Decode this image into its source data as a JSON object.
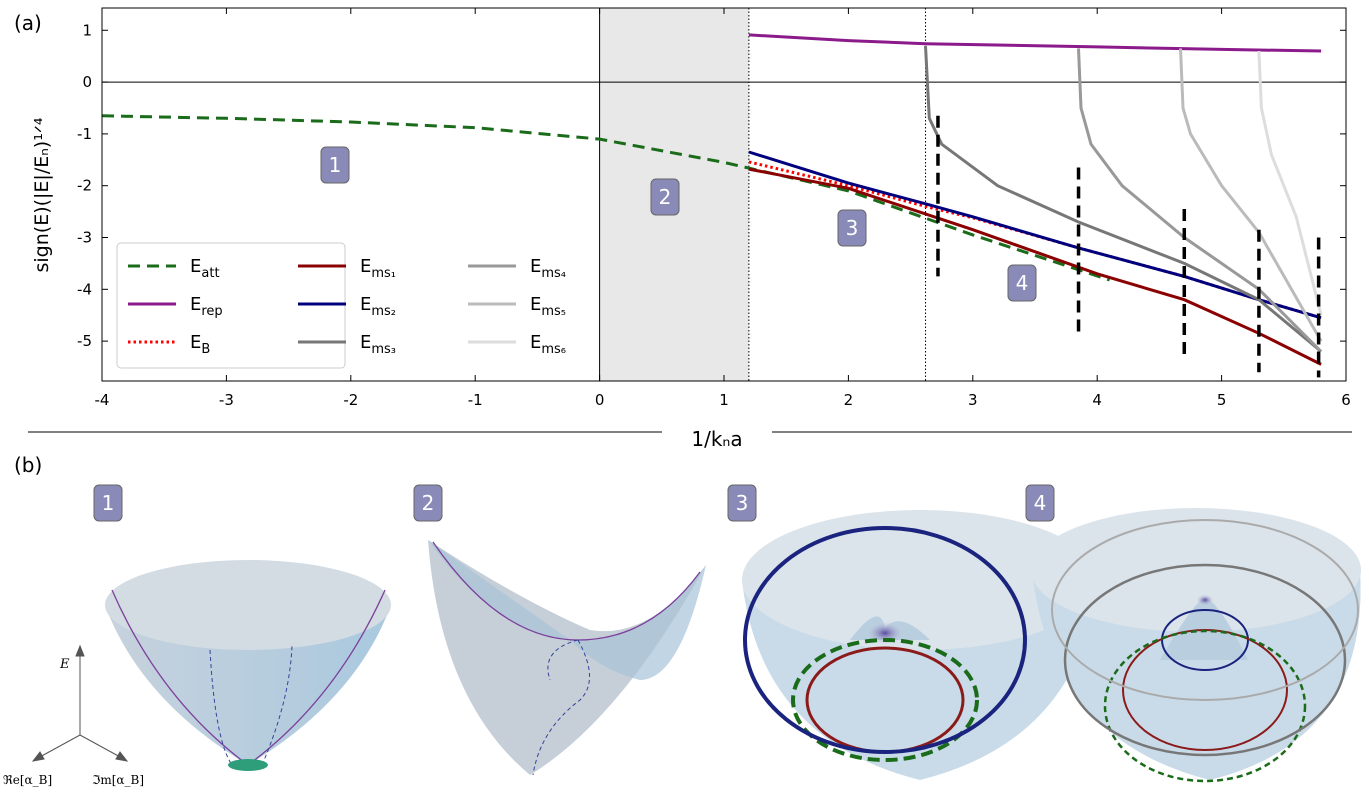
{
  "chart_data": {
    "type": "line",
    "xlabel": "1/kₙa",
    "ylabel": "sign(E)(|E|/Eₙ)¹ᐟ⁴",
    "xlim": [
      -4,
      6
    ],
    "ylim": [
      -5.77,
      1.43
    ],
    "xticks": [
      -4,
      -3,
      -2,
      -1,
      0,
      1,
      2,
      3,
      4,
      5,
      6
    ],
    "yticks": [
      -5,
      -4,
      -3,
      -2,
      -1,
      0,
      1
    ],
    "shaded_region": [
      0,
      1.2
    ],
    "dotted_lines": [
      1.2,
      2.62
    ],
    "dashed_bars": [
      {
        "x": 2.72,
        "y0": -0.65,
        "y1": -3.75
      },
      {
        "x": 3.85,
        "y0": -1.65,
        "y1": -4.85
      },
      {
        "x": 4.7,
        "y0": -2.45,
        "y1": -5.3
      },
      {
        "x": 5.3,
        "y0": -2.85,
        "y1": -5.6
      },
      {
        "x": 5.78,
        "y0": -3.0,
        "y1": -5.7
      }
    ],
    "annotations": [
      "1",
      "2",
      "3",
      "4"
    ],
    "legend": "lower left",
    "series": [
      {
        "name": "E",
        "sub": "att",
        "color": "#1a6b1a",
        "dash": "dashed",
        "x": [
          -4,
          -3,
          -2,
          -1,
          0,
          1,
          1.2,
          2,
          3,
          4.1
        ],
        "values": [
          -0.65,
          -0.7,
          -0.77,
          -0.88,
          -1.1,
          -1.55,
          -1.66,
          -2.1,
          -2.95,
          -3.82
        ]
      },
      {
        "name": "E",
        "sub": "rep",
        "color": "#8b1a8b",
        "dash": "solid",
        "x": [
          1.2,
          2,
          2.62,
          4,
          5,
          5.8
        ],
        "values": [
          0.91,
          0.8,
          0.74,
          0.68,
          0.63,
          0.6
        ]
      },
      {
        "name": "E",
        "sub": "B",
        "color": "#ff0000",
        "dash": "dotted",
        "x": [
          1.2,
          2,
          2.62,
          3,
          3.85,
          4.7,
          5.3,
          5.8
        ],
        "values": [
          -1.54,
          -2.0,
          -2.4,
          -2.62,
          -3.2,
          -3.75,
          -4.2,
          -4.55
        ]
      },
      {
        "name": "E",
        "sub": "ms₁",
        "color": "#8b0000",
        "dash": "solid",
        "x": [
          1.2,
          2,
          3,
          4,
          4.7,
          5.3,
          5.8
        ],
        "values": [
          -1.68,
          -2.05,
          -2.85,
          -3.7,
          -4.2,
          -4.85,
          -5.45
        ]
      },
      {
        "name": "E",
        "sub": "ms₂",
        "color": "#00007f",
        "dash": "solid",
        "x": [
          1.2,
          2,
          2.62,
          3,
          3.85,
          4.7,
          5.3,
          5.8
        ],
        "values": [
          -1.35,
          -1.95,
          -2.35,
          -2.6,
          -3.2,
          -3.75,
          -4.2,
          -4.55
        ]
      },
      {
        "name": "E",
        "sub": "ms₃",
        "color": "#777777",
        "dash": "solid",
        "x": [
          2.62,
          2.65,
          2.75,
          3.2,
          3.85,
          4.7,
          5.3,
          5.8
        ],
        "values": [
          0.7,
          -0.7,
          -1.2,
          -2.0,
          -2.7,
          -3.5,
          -4.2,
          -5.2
        ]
      },
      {
        "name": "E",
        "sub": "ms₄",
        "color": "#999999",
        "dash": "solid",
        "x": [
          3.85,
          3.87,
          3.95,
          4.2,
          4.7,
          5.3,
          5.8
        ],
        "values": [
          0.65,
          -0.5,
          -1.2,
          -2.0,
          -3.0,
          -4.0,
          -5.2
        ]
      },
      {
        "name": "E",
        "sub": "ms₅",
        "color": "#bbbbbb",
        "dash": "solid",
        "x": [
          4.67,
          4.69,
          4.75,
          5.0,
          5.3,
          5.8
        ],
        "values": [
          0.65,
          -0.5,
          -1.0,
          -2.0,
          -2.9,
          -5.0
        ]
      },
      {
        "name": "E",
        "sub": "ms₆",
        "color": "#dddddd",
        "dash": "solid",
        "x": [
          5.3,
          5.32,
          5.4,
          5.6,
          5.8
        ],
        "values": [
          0.6,
          -0.5,
          -1.4,
          -2.6,
          -4.5
        ]
      }
    ]
  },
  "panel_labels": [
    "(a)",
    "(b)"
  ],
  "b_badges": [
    "1",
    "2",
    "3",
    "4"
  ],
  "axis_labels": {
    "e": "E",
    "re": "ℜe[α_B]",
    "im": "ℑm[α_B]"
  }
}
